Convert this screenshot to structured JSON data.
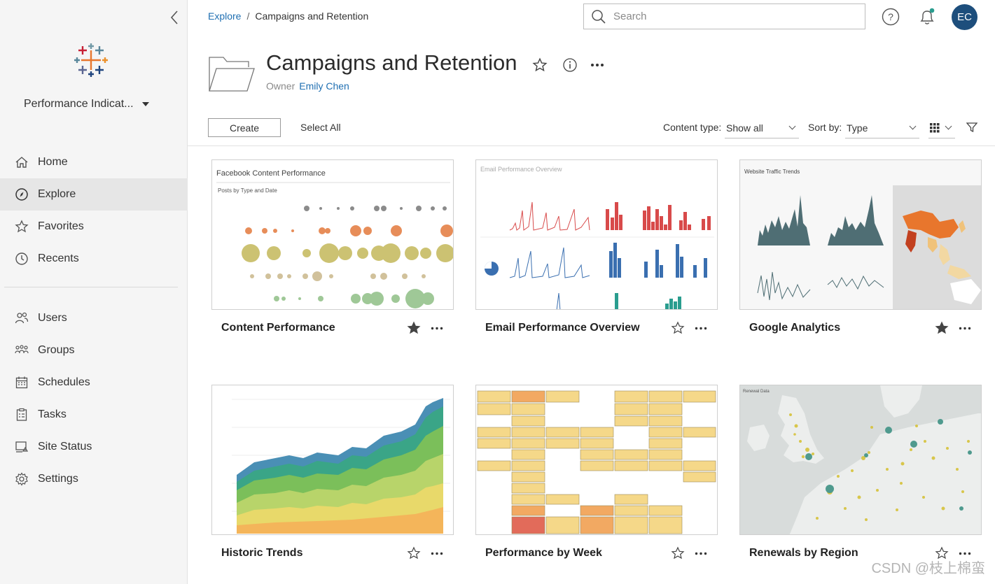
{
  "sidebar": {
    "site_name": "Performance Indicat...",
    "nav_primary": [
      {
        "label": "Home",
        "icon": "home-icon"
      },
      {
        "label": "Explore",
        "icon": "compass-icon",
        "active": true
      },
      {
        "label": "Favorites",
        "icon": "star-icon"
      },
      {
        "label": "Recents",
        "icon": "clock-icon"
      }
    ],
    "nav_admin": [
      {
        "label": "Users",
        "icon": "users-icon"
      },
      {
        "label": "Groups",
        "icon": "groups-icon"
      },
      {
        "label": "Schedules",
        "icon": "calendar-icon"
      },
      {
        "label": "Tasks",
        "icon": "clipboard-icon"
      },
      {
        "label": "Site Status",
        "icon": "site-status-icon"
      },
      {
        "label": "Settings",
        "icon": "gear-icon"
      }
    ]
  },
  "topbar": {
    "breadcrumb": {
      "root": "Explore",
      "separator": "/",
      "current": "Campaigns and Retention"
    },
    "search_placeholder": "Search",
    "avatar_initials": "EC"
  },
  "header": {
    "title": "Campaigns and Retention",
    "owner_label": "Owner",
    "owner_name": "Emily Chen"
  },
  "toolbar": {
    "create_label": "Create",
    "select_all_label": "Select All",
    "content_type_label": "Content type:",
    "content_type_value": "Show all",
    "sort_by_label": "Sort by:",
    "sort_by_value": "Type"
  },
  "cards": [
    {
      "title": "Content Performance",
      "favorited": true
    },
    {
      "title": "Email Performance Overview",
      "favorited": false
    },
    {
      "title": "Google Analytics",
      "favorited": true
    },
    {
      "title": "Historic Trends",
      "favorited": false
    },
    {
      "title": "Performance by Week",
      "favorited": false
    },
    {
      "title": "Renewals by Region",
      "favorited": false
    }
  ],
  "thumbnails": {
    "content_performance": {
      "title": "Facebook Content Performance",
      "subtitle": "Posts by Type and Date"
    },
    "email_overview": {
      "title": "Email Performance Overview"
    },
    "google_analytics": {
      "title": "Website Traffic Trends"
    },
    "renewals": {
      "title": "Renewal Data"
    }
  },
  "colors": {
    "accent": "#1f6fb2",
    "avatar": "#1d4e7c",
    "active_nav": "#e6e6e6"
  },
  "watermark": "CSDN @枝上棉蛮"
}
